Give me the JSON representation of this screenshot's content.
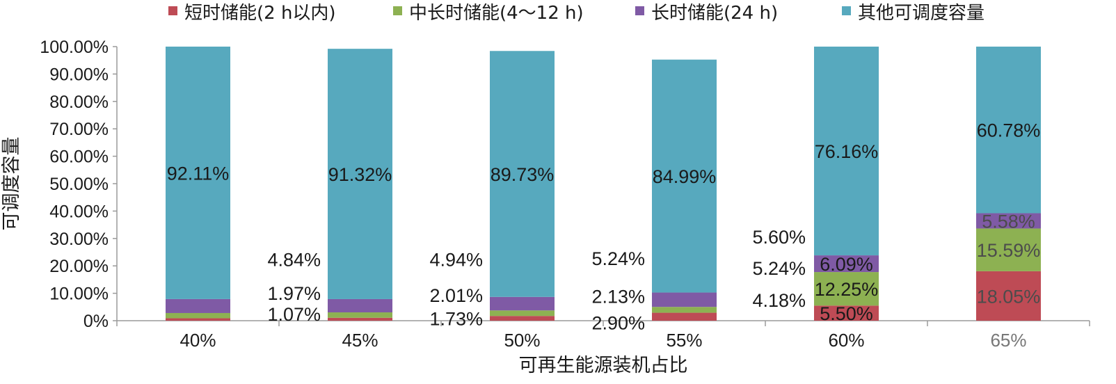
{
  "chart_data": {
    "type": "bar",
    "stacked": true,
    "categories": [
      "40%",
      "45%",
      "50%",
      "55%",
      "60%",
      "65%"
    ],
    "series": [
      {
        "name": "短时储能(2 h以内)",
        "color": "#BE4B55",
        "values": [
          0.9,
          1.07,
          1.73,
          2.9,
          5.5,
          18.05
        ],
        "labels": [
          "",
          "1.07%",
          "1.73%",
          "2.90%",
          "5.50%",
          "18.05%"
        ]
      },
      {
        "name": "中长时储能(4～12 h)",
        "color": "#8DB152",
        "values": [
          1.9,
          1.97,
          2.01,
          2.13,
          12.25,
          15.59
        ],
        "labels": [
          "",
          "1.97%",
          "2.01%",
          "2.13%",
          "12.25%",
          "15.59%"
        ]
      },
      {
        "name": "长时储能(24 h)",
        "color": "#7F5AA5",
        "values": [
          5.09,
          4.84,
          4.94,
          5.24,
          6.09,
          5.58
        ],
        "labels": [
          "",
          "4.84%",
          "4.94%",
          "5.24%",
          "6.09%",
          "5.58%"
        ]
      },
      {
        "name": "其他可调度容量",
        "color": "#57A9BE",
        "values": [
          92.11,
          91.32,
          89.73,
          84.99,
          76.16,
          60.78
        ],
        "labels": [
          "92.11%",
          "91.32%",
          "89.73%",
          "84.99%",
          "76.16%",
          "60.78%"
        ]
      }
    ],
    "extra_labels": [
      {
        "category": "60%",
        "text": "5.60%"
      },
      {
        "category": "60%",
        "text": "5.24%"
      },
      {
        "category": "60%",
        "text": "4.18%"
      }
    ],
    "y_ticks": [
      "0%",
      "10.00%",
      "20.00%",
      "30.00%",
      "40.00%",
      "50.00%",
      "60.00%",
      "70.00%",
      "80.00%",
      "90.00%",
      "100.00%"
    ],
    "ylim": [
      0,
      100
    ],
    "xlabel": "可再生能源装机占比",
    "ylabel": "可调度容量",
    "legend_position": "top",
    "grid": false,
    "colors": {
      "axis": "#9a9a9a",
      "text": "#1a1a1a",
      "muted_text": "#777777",
      "inside_dark_label": "#4c4c4c"
    }
  }
}
